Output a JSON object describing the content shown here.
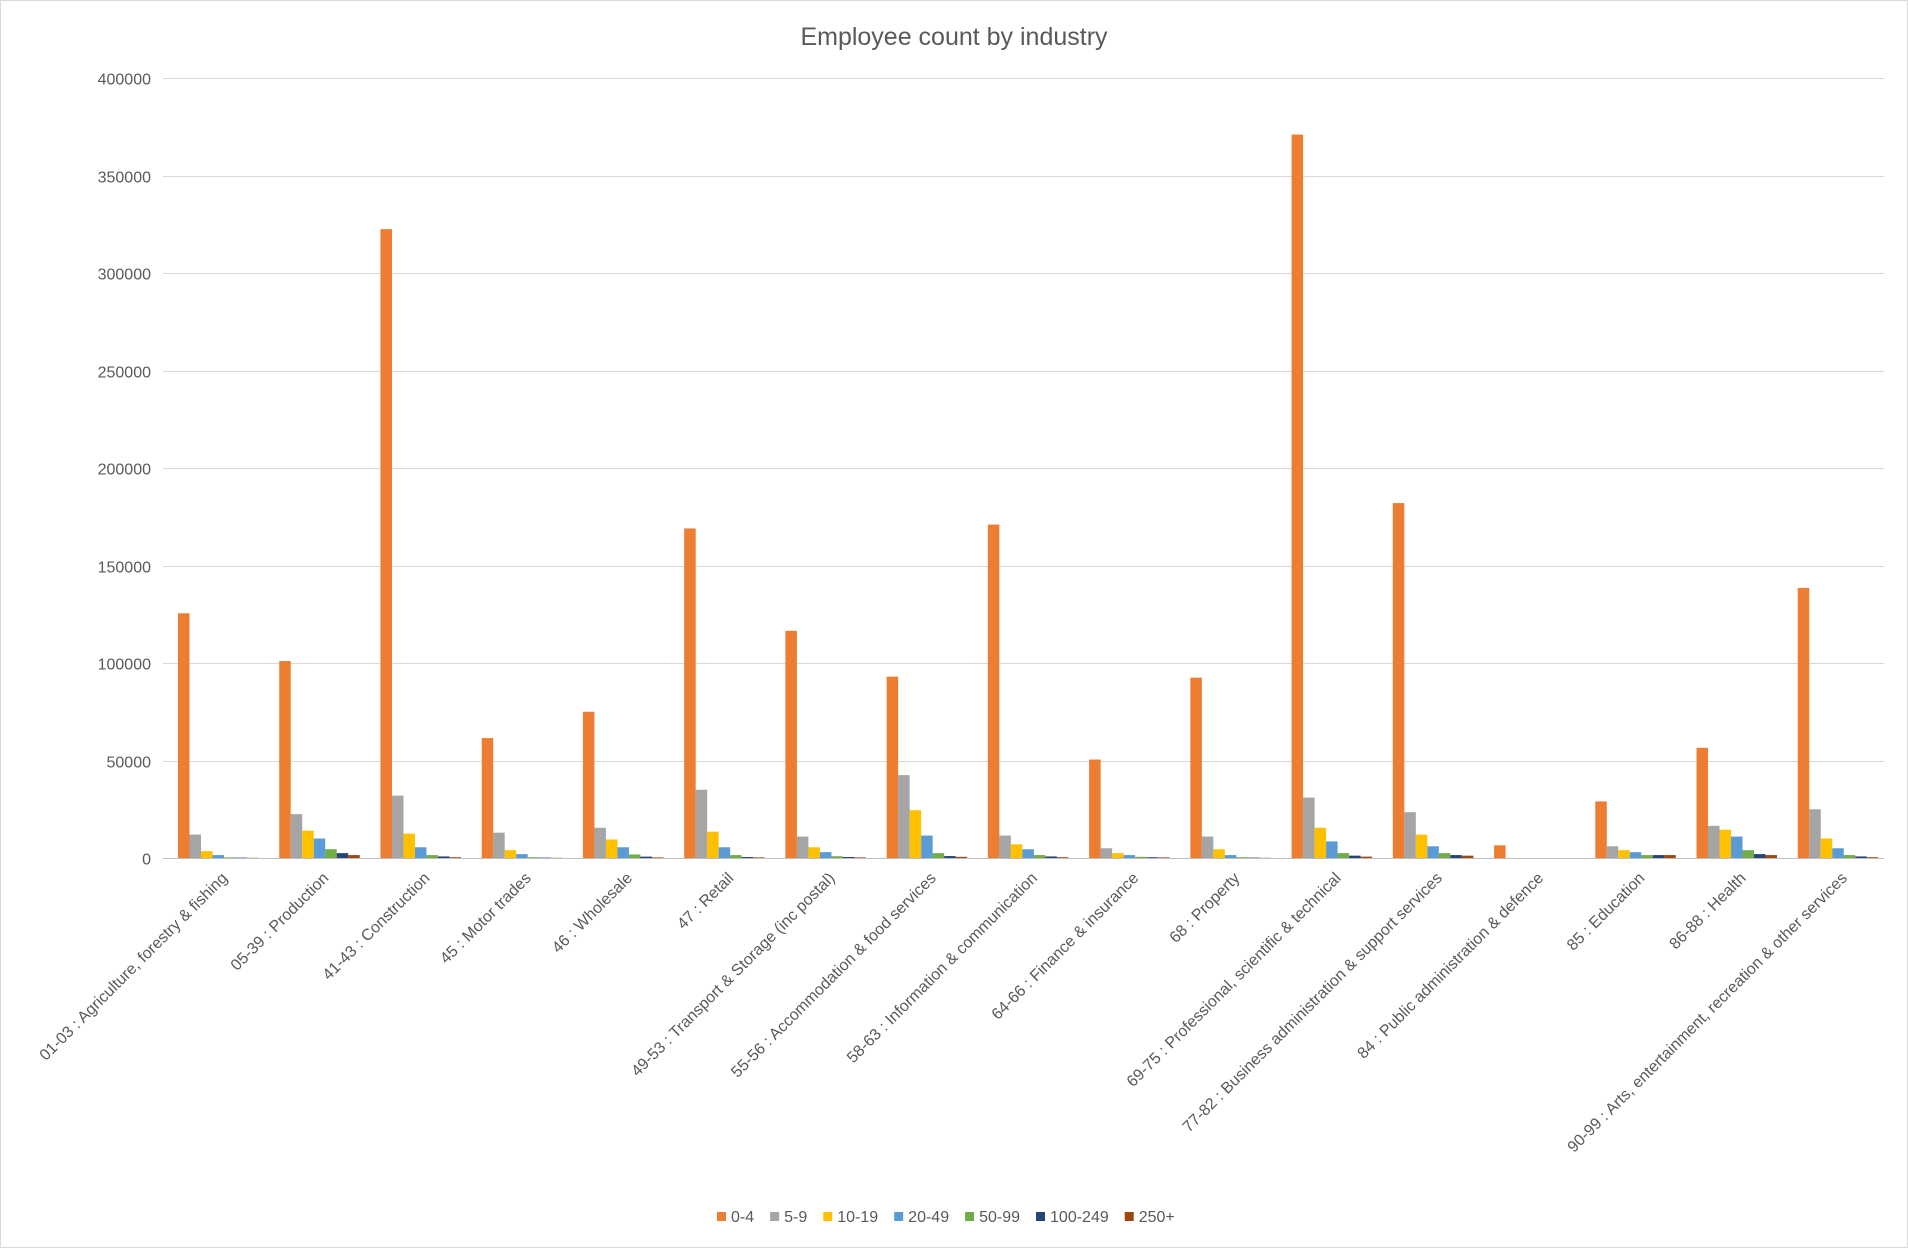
{
  "chart_data": {
    "type": "bar",
    "title": "Employee count by industry",
    "xlabel": "",
    "ylabel": "",
    "ylim": [
      0,
      400000
    ],
    "yticks": [
      0,
      50000,
      100000,
      150000,
      200000,
      250000,
      300000,
      350000,
      400000
    ],
    "grid": true,
    "legend_position": "bottom",
    "categories": [
      "01-03 : Agriculture, forestry & fishing",
      "05-39 : Production",
      "41-43 : Construction",
      "45 : Motor trades",
      "46 : Wholesale",
      "47 : Retail",
      "49-53 : Transport & Storage (inc postal)",
      "55-56 : Accommodation & food services",
      "58-63 : Information & communication",
      "64-66 : Finance & insurance",
      "68 : Property",
      "69-75 : Professional, scientific & technical",
      "77-82 : Business administration & support services",
      "84 : Public administration & defence",
      "85 : Education",
      "86-88 : Health",
      "90-99 : Arts, entertainment, recreation & other services"
    ],
    "series": [
      {
        "name": "0-4",
        "color": "#ED7D31",
        "values": [
          125500,
          101000,
          322500,
          61500,
          75000,
          169000,
          116500,
          93000,
          171000,
          50500,
          92500,
          371000,
          182000,
          6500,
          29000,
          56500,
          138500
        ]
      },
      {
        "name": "5-9",
        "color": "#A5A5A5",
        "values": [
          12000,
          22500,
          32000,
          13000,
          15500,
          35000,
          11000,
          42500,
          11500,
          5000,
          11000,
          31000,
          23500,
          0,
          6000,
          16500,
          25000
        ]
      },
      {
        "name": "10-19",
        "color": "#FFC000",
        "values": [
          3500,
          14000,
          12500,
          4000,
          9500,
          13500,
          5500,
          24500,
          7000,
          2500,
          4500,
          15500,
          12000,
          0,
          4000,
          14500,
          10000
        ]
      },
      {
        "name": "20-49",
        "color": "#5B9BD5",
        "values": [
          1500,
          10000,
          5500,
          2000,
          5500,
          5500,
          3000,
          11500,
          4500,
          1500,
          1500,
          8500,
          6000,
          0,
          3000,
          11000,
          5000
        ]
      },
      {
        "name": "50-99",
        "color": "#70AD47",
        "values": [
          300,
          4500,
          1500,
          400,
          1800,
          1500,
          900,
          2500,
          1500,
          600,
          400,
          2500,
          2500,
          0,
          1500,
          4000,
          1500
        ]
      },
      {
        "name": "100-249",
        "color": "#264478",
        "values": [
          200,
          2500,
          800,
          200,
          700,
          500,
          500,
          1000,
          800,
          400,
          200,
          1200,
          1500,
          0,
          1500,
          2000,
          800
        ]
      },
      {
        "name": "250+",
        "color": "#9E480E",
        "values": [
          100,
          1500,
          400,
          100,
          300,
          300,
          300,
          600,
          400,
          300,
          100,
          700,
          1200,
          0,
          1500,
          1500,
          400
        ]
      }
    ]
  }
}
